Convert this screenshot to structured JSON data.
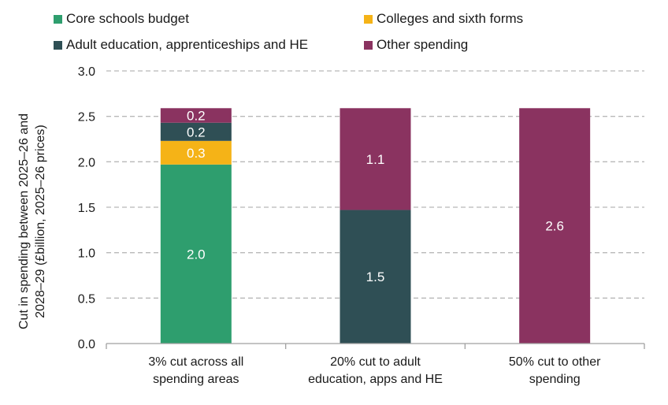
{
  "chart_data": {
    "type": "bar",
    "stacked": true,
    "categories": [
      [
        "3% cut across all",
        "spending areas"
      ],
      [
        "20% cut to adult",
        "education, apps and HE"
      ],
      [
        "50% cut to other",
        "spending"
      ]
    ],
    "series": [
      {
        "name": "Core schools budget",
        "color": "#2e9e6e",
        "values": [
          1.97,
          0,
          0
        ],
        "labels": [
          "2.0",
          "",
          ""
        ]
      },
      {
        "name": "Colleges and sixth forms",
        "color": "#f5b317",
        "values": [
          0.26,
          0,
          0
        ],
        "labels": [
          "0.3",
          "",
          ""
        ]
      },
      {
        "name": "Adult education, apprenticeships and HE",
        "color": "#2f4f55",
        "values": [
          0.2,
          1.47,
          0
        ],
        "labels": [
          "0.2",
          "1.5",
          ""
        ]
      },
      {
        "name": "Other spending",
        "color": "#8a3360",
        "values": [
          0.16,
          1.12,
          2.59
        ],
        "labels": [
          "0.2",
          "1.1",
          "2.6"
        ]
      }
    ],
    "ylabel": [
      "Cut in spending between 2025–26 and",
      "2028–29 (£billion, 2025–26 prices)"
    ],
    "yticks": [
      "0.0",
      "0.5",
      "1.0",
      "1.5",
      "2.0",
      "2.5",
      "3.0"
    ],
    "ylim": [
      0,
      3.0
    ],
    "grid": true,
    "legend_position": "top"
  }
}
